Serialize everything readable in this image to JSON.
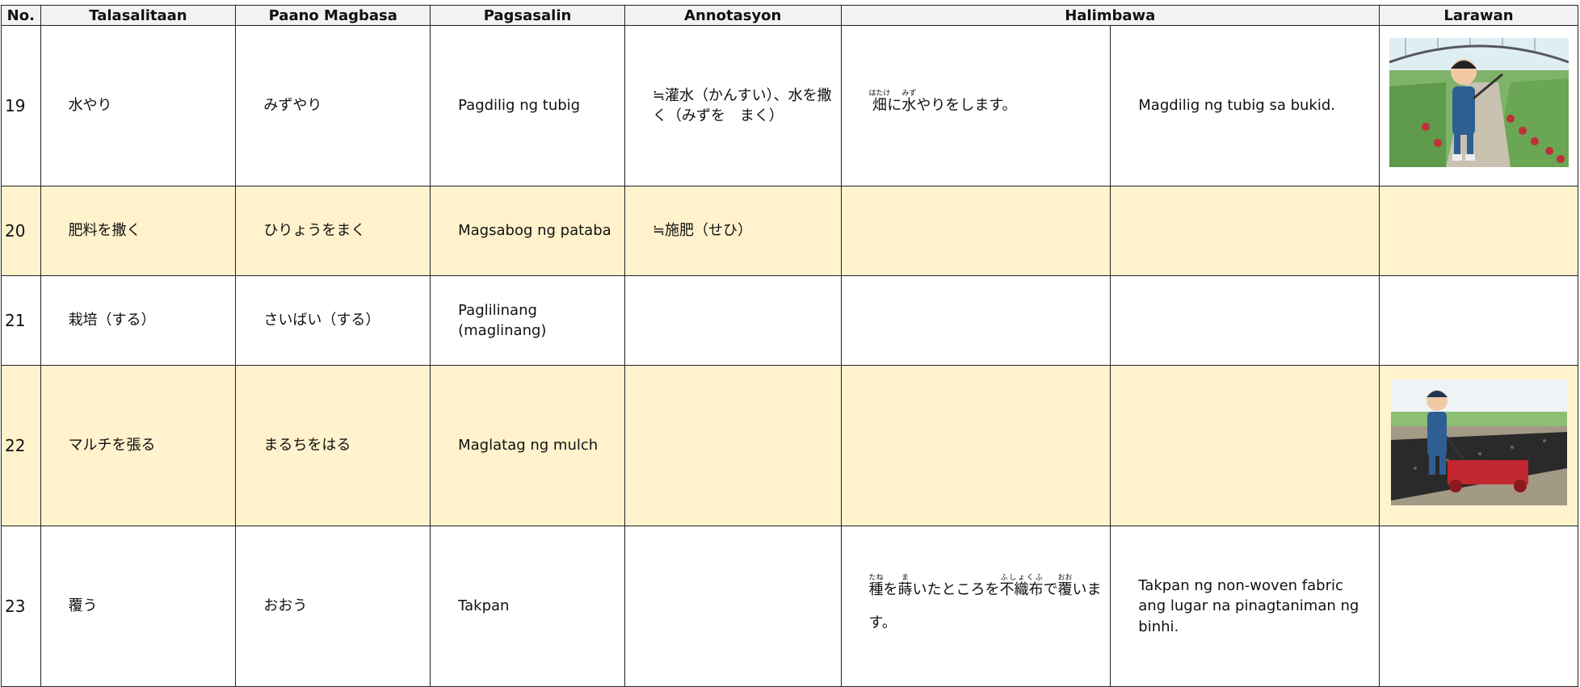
{
  "table": {
    "header": [
      "No.",
      "Talasalitaan",
      "Paano Magbasa",
      "Pagsasalin",
      "Annotasyon",
      "Halimbawa",
      "Larawan"
    ],
    "rows": [
      {
        "no": 19,
        "term": "水やり",
        "reading": "みずやり",
        "translation": "Pagdilig ng tubig",
        "annotation": "≒灌水（かんすい）、水を撒く（みずを　まく）",
        "example": [
          {
            "base": "畑",
            "ruby": "はたけ"
          },
          {
            "text": "に"
          },
          {
            "base": "水",
            "ruby": "みず"
          },
          {
            "text": "やりをします。"
          }
        ],
        "example_translation": "Magdilig ng tubig sa bukid."
      },
      {
        "no": 20,
        "term": "肥料を撒く",
        "reading": "ひりょうをまく",
        "translation": "Magsabog ng pataba",
        "annotation": "≒施肥（せひ）"
      },
      {
        "no": 21,
        "term": "栽培（する）",
        "reading": "さいばい（する）",
        "translation": "Paglilinang (maglinang)"
      },
      {
        "no": 22,
        "term": "マルチを張る",
        "reading": "まるちをはる",
        "translation": "Maglatag ng mulch"
      },
      {
        "no": 23,
        "term": "覆う",
        "reading": "おおう",
        "translation": "Takpan",
        "example": [
          {
            "base": "種",
            "ruby": "たね"
          },
          {
            "text": "を"
          },
          {
            "base": "蒔",
            "ruby": "ま"
          },
          {
            "text": "いたところを"
          },
          {
            "base": "不織布",
            "ruby": "ふしょくふ"
          },
          {
            "text": "で"
          },
          {
            "base": "覆",
            "ruby": "おお"
          },
          {
            "text": "います。"
          }
        ],
        "example_translation": "Takpan ng non-woven fabric ang lugar na pinagtaniman ng binhi."
      }
    ]
  }
}
